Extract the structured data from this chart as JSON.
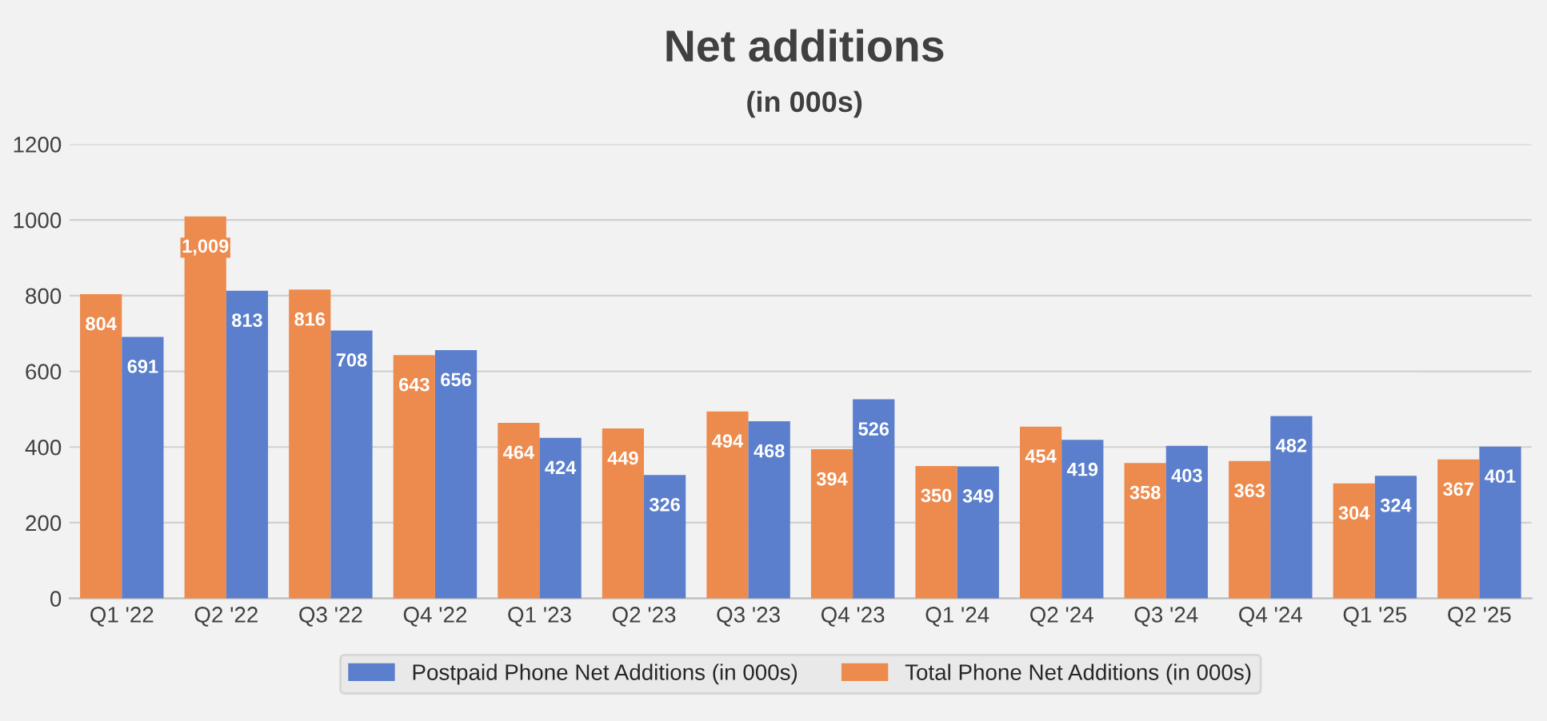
{
  "chart_data": {
    "type": "bar",
    "title": "Net additions",
    "subtitle": "(in 000s)",
    "categories": [
      "Q1 '22",
      "Q2 '22",
      "Q3 '22",
      "Q4 '22",
      "Q1 '23",
      "Q2 '23",
      "Q3 '23",
      "Q4 '23",
      "Q1 '24",
      "Q2 '24",
      "Q3 '24",
      "Q4 '24",
      "Q1 '25",
      "Q2 '25"
    ],
    "series": [
      {
        "name": "Total Phone Net Additions (in 000s)",
        "color": "#ed8b4e",
        "values": [
          804,
          1009,
          816,
          643,
          464,
          449,
          494,
          394,
          350,
          454,
          358,
          363,
          304,
          367
        ],
        "value_labels": [
          "804",
          "1,009",
          "816",
          "643",
          "464",
          "449",
          "494",
          "394",
          "350",
          "454",
          "358",
          "363",
          "304",
          "367"
        ]
      },
      {
        "name": "Postpaid Phone Net Additions (in 000s)",
        "color": "#5b7fcc",
        "values": [
          691,
          813,
          708,
          656,
          424,
          326,
          468,
          526,
          349,
          419,
          403,
          482,
          324,
          401
        ],
        "value_labels": [
          "691",
          "813",
          "708",
          "656",
          "424",
          "326",
          "468",
          "526",
          "349",
          "419",
          "403",
          "482",
          "324",
          "401"
        ]
      }
    ],
    "ylim": [
      0,
      1200
    ],
    "yticks": [
      0,
      200,
      400,
      600,
      800,
      1000,
      1200
    ],
    "grid": "y",
    "legend": "bottom"
  }
}
